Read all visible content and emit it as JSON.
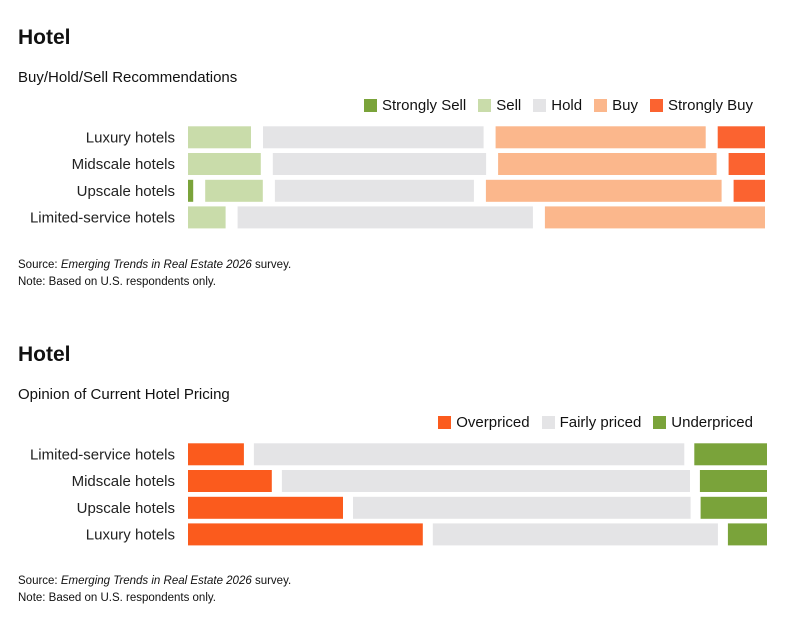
{
  "colors": {
    "strongly_sell": "#7aa33a",
    "sell": "#c9dcaa",
    "hold": "#e4e4e6",
    "buy": "#fbb78c",
    "strongly_buy": "#fb6330",
    "overpriced": "#fb5b1d",
    "fairly_priced": "#e4e4e6",
    "underpriced": "#7aa33a"
  },
  "section1": {
    "heading": "Hotel",
    "subtitle": "Buy/Hold/Sell Recommendations",
    "source_prefix": "Source: ",
    "source_italic": "Emerging Trends in Real Estate 2026",
    "source_suffix": " survey.",
    "note": "Note: Based on U.S. respondents only."
  },
  "section2": {
    "heading": "Hotel",
    "subtitle": "Opinion of Current Hotel Pricing",
    "source_prefix": "Source: ",
    "source_italic": "Emerging Trends in Real Estate 2026",
    "source_suffix": " survey.",
    "note": "Note: Based on U.S. respondents only."
  },
  "chart_data": [
    {
      "type": "bar",
      "orientation": "horizontal",
      "stacked": true,
      "title": "Buy/Hold/Sell Recommendations",
      "legend_position": "top-right",
      "categories": [
        "Luxury hotels",
        "Midscale hotels",
        "Upscale hotels",
        "Limited-service hotels"
      ],
      "series": [
        {
          "name": "Strongly Sell",
          "color": "#7aa33a",
          "values": [
            0,
            0,
            1,
            0
          ]
        },
        {
          "name": "Sell",
          "color": "#c9dcaa",
          "values": [
            12,
            14,
            11,
            7
          ]
        },
        {
          "name": "Hold",
          "color": "#e4e4e6",
          "values": [
            42,
            41,
            38,
            55
          ]
        },
        {
          "name": "Buy",
          "color": "#fbb78c",
          "values": [
            40,
            42,
            45,
            41
          ]
        },
        {
          "name": "Strongly Buy",
          "color": "#fb6330",
          "values": [
            9,
            7,
            6,
            0
          ]
        }
      ]
    },
    {
      "type": "bar",
      "orientation": "horizontal",
      "stacked": true,
      "title": "Opinion of Current Hotel Pricing",
      "legend_position": "top-right",
      "categories": [
        "Limited-service hotels",
        "Midscale hotels",
        "Upscale hotels",
        "Luxury hotels"
      ],
      "series": [
        {
          "name": "Overpriced",
          "color": "#fb5b1d",
          "values": [
            10,
            15,
            28,
            42
          ]
        },
        {
          "name": "Fairly priced",
          "color": "#e4e4e6",
          "values": [
            77,
            73,
            61,
            51
          ]
        },
        {
          "name": "Underpriced",
          "color": "#7aa33a",
          "values": [
            13,
            12,
            12,
            7
          ]
        }
      ]
    }
  ]
}
